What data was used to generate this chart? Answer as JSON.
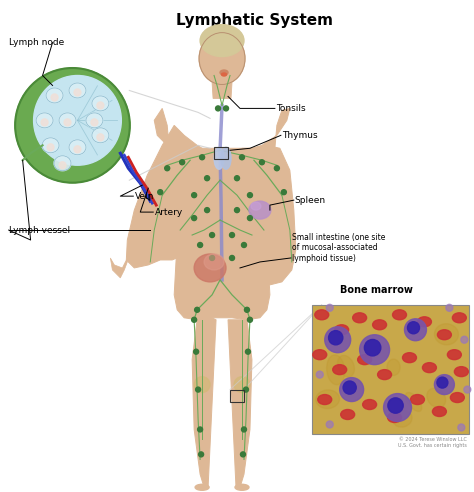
{
  "title": "Lymphatic System",
  "title_fontsize": 11,
  "title_fontweight": "bold",
  "bg_color": "#ffffff",
  "labels": {
    "lymph_node": "Lymph node",
    "tonsils": "Tonsils",
    "thymus": "Thymus",
    "spleen": "Spleen",
    "small_intestine": "Small intestine (one site\nof mucosal-associated\nlymphoid tissue)",
    "bone_marrow": "Bone marrow",
    "vein": "Vein",
    "artery": "Artery",
    "lymph_vessel": "Lymph vessel"
  },
  "body_skin_color": "#deb896",
  "body_outline_color": "#b89070",
  "lymph_node_outer_fill": "#8aba7a",
  "lymph_node_outer_stroke": "#5a9050",
  "lymph_node_inner_fill": "#c8e8f0",
  "lymph_node_inner_stroke": "#90c0d0",
  "follicle_fill": "#e8f4f8",
  "follicle_stroke": "#90b8c8",
  "lymph_vessel_color": "#6aaa5a",
  "node_dot_color": "#3a7a3a",
  "vein_color": "#3344bb",
  "artery_color": "#cc2222",
  "thymus_color": "#c0c0e0",
  "spleen_color": "#b090c0",
  "intestine_color": "#cc6655",
  "bone_marrow_bg": "#c8a84a",
  "rbc_color": "#cc3333",
  "wbc_outer": "#7755aa",
  "wbc_inner": "#3322aa",
  "copyright_text": "© 2024 Terese Winslow LLC\nU.S. Govt. has certain rights",
  "connector_color": "#cccccc"
}
